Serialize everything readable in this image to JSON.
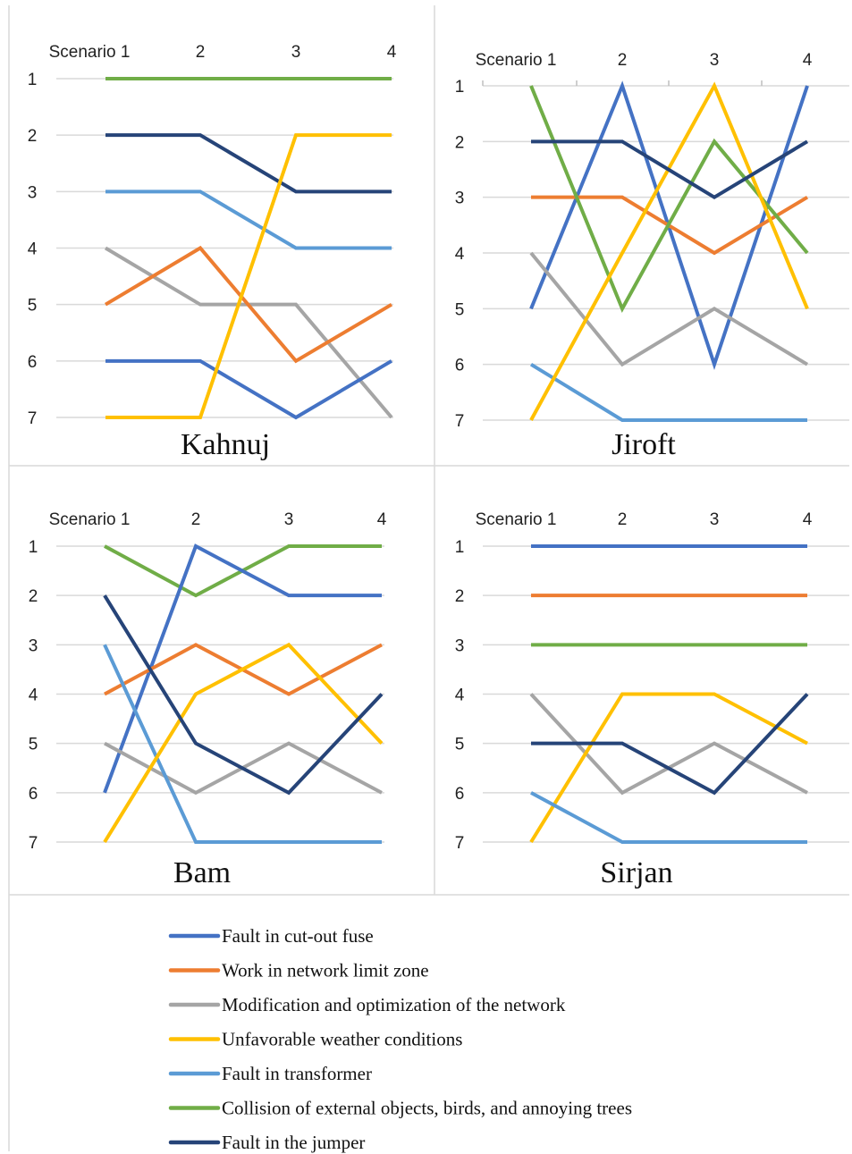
{
  "colors": {
    "fault_cutout_fuse": "#4472C4",
    "work_network_limit": "#ED7D31",
    "modification_optimization": "#A5A5A5",
    "unfavorable_weather": "#FFC000",
    "fault_transformer": "#5B9BD5",
    "collision_external": "#70AD47",
    "fault_jumper": "#264478"
  },
  "legend": [
    {
      "key": "fault_cutout_fuse",
      "label": "Fault in cut-out fuse"
    },
    {
      "key": "work_network_limit",
      "label": "Work in network limit zone"
    },
    {
      "key": "modification_optimization",
      "label": "Modification and optimization of the network"
    },
    {
      "key": "unfavorable_weather",
      "label": "Unfavorable weather conditions"
    },
    {
      "key": "fault_transformer",
      "label": "Fault in transformer"
    },
    {
      "key": "collision_external",
      "label": "Collision of external objects, birds, and annoying trees"
    },
    {
      "key": "fault_jumper",
      "label": "Fault in the jumper"
    }
  ],
  "chart_data": [
    {
      "type": "line",
      "title": "Kahnuj",
      "categories": [
        "Scenario 1",
        "2",
        "3",
        "4"
      ],
      "y_ticks": [
        "1",
        "2",
        "3",
        "4",
        "5",
        "6",
        "7"
      ],
      "ylim": [
        1,
        7
      ],
      "y_inverted": true,
      "series": [
        {
          "key": "collision_external",
          "values": [
            1,
            1,
            1,
            1
          ]
        },
        {
          "key": "fault_jumper",
          "values": [
            2,
            2,
            3,
            3
          ]
        },
        {
          "key": "fault_transformer",
          "values": [
            3,
            3,
            4,
            4
          ]
        },
        {
          "key": "modification_optimization",
          "values": [
            4,
            5,
            5,
            7
          ]
        },
        {
          "key": "work_network_limit",
          "values": [
            5,
            4,
            6,
            5
          ]
        },
        {
          "key": "fault_cutout_fuse",
          "values": [
            6,
            6,
            7,
            6
          ]
        },
        {
          "key": "unfavorable_weather",
          "values": [
            7,
            7,
            2,
            2
          ]
        }
      ]
    },
    {
      "type": "line",
      "title": "Jiroft",
      "categories": [
        "Scenario 1",
        "2",
        "3",
        "4"
      ],
      "y_ticks": [
        "1",
        "2",
        "3",
        "4",
        "5",
        "6",
        "7"
      ],
      "ylim": [
        1,
        7
      ],
      "y_inverted": true,
      "series": [
        {
          "key": "fault_cutout_fuse",
          "values": [
            5,
            1,
            6,
            1
          ]
        },
        {
          "key": "work_network_limit",
          "values": [
            3,
            3,
            4,
            3
          ]
        },
        {
          "key": "modification_optimization",
          "values": [
            4,
            6,
            5,
            6
          ]
        },
        {
          "key": "fault_transformer",
          "values": [
            6,
            7,
            7,
            7
          ]
        },
        {
          "key": "collision_external",
          "values": [
            1,
            5,
            2,
            4
          ]
        },
        {
          "key": "unfavorable_weather",
          "values": [
            7,
            4,
            1,
            5
          ]
        },
        {
          "key": "fault_jumper",
          "values": [
            2,
            2,
            3,
            2
          ]
        }
      ]
    },
    {
      "type": "line",
      "title": "Bam",
      "categories": [
        "Scenario 1",
        "2",
        "3",
        "4"
      ],
      "y_ticks": [
        "1",
        "2",
        "3",
        "4",
        "5",
        "6",
        "7"
      ],
      "ylim": [
        1,
        7
      ],
      "y_inverted": true,
      "series": [
        {
          "key": "collision_external",
          "values": [
            1,
            2,
            1,
            1
          ]
        },
        {
          "key": "fault_cutout_fuse",
          "values": [
            6,
            1,
            2,
            2
          ]
        },
        {
          "key": "work_network_limit",
          "values": [
            4,
            3,
            4,
            3
          ]
        },
        {
          "key": "modification_optimization",
          "values": [
            5,
            6,
            5,
            6
          ]
        },
        {
          "key": "fault_transformer",
          "values": [
            3,
            7,
            7,
            7
          ]
        },
        {
          "key": "unfavorable_weather",
          "values": [
            7,
            4,
            3,
            5
          ]
        },
        {
          "key": "fault_jumper",
          "values": [
            2,
            5,
            6,
            4
          ]
        }
      ]
    },
    {
      "type": "line",
      "title": "Sirjan",
      "categories": [
        "Scenario 1",
        "2",
        "3",
        "4"
      ],
      "y_ticks": [
        "1",
        "2",
        "3",
        "4",
        "5",
        "6",
        "7"
      ],
      "ylim": [
        1,
        7
      ],
      "y_inverted": true,
      "series": [
        {
          "key": "fault_cutout_fuse",
          "values": [
            1,
            1,
            1,
            1
          ]
        },
        {
          "key": "work_network_limit",
          "values": [
            2,
            2,
            2,
            2
          ]
        },
        {
          "key": "collision_external",
          "values": [
            3,
            3,
            3,
            3
          ]
        },
        {
          "key": "modification_optimization",
          "values": [
            4,
            6,
            5,
            6
          ]
        },
        {
          "key": "unfavorable_weather",
          "values": [
            7,
            4,
            4,
            5
          ]
        },
        {
          "key": "fault_transformer",
          "values": [
            6,
            7,
            7,
            7
          ]
        },
        {
          "key": "fault_jumper",
          "values": [
            5,
            5,
            6,
            4
          ]
        }
      ]
    }
  ]
}
